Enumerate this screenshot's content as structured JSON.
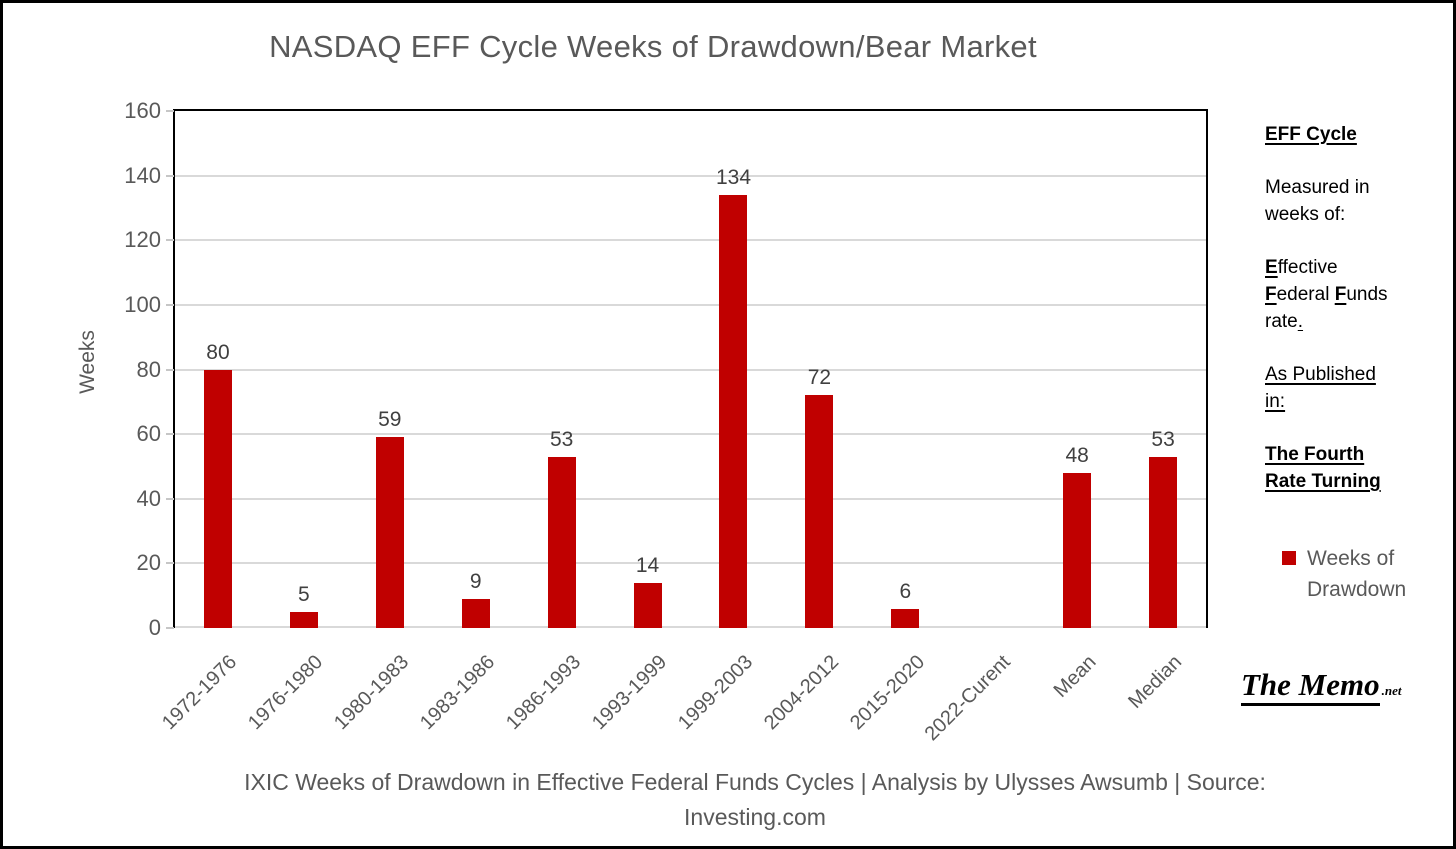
{
  "chart_data": {
    "type": "bar",
    "title": "NASDAQ EFF Cycle Weeks of Drawdown/Bear Market",
    "categories": [
      "1972-1976",
      "1976-1980",
      "1980-1983",
      "1983-1986",
      "1986-1993",
      "1993-1999",
      "1999-2003",
      "2004-2012",
      "2015-2020",
      "2022-Curent",
      "Mean",
      "Median"
    ],
    "values": [
      80,
      5,
      59,
      9,
      53,
      14,
      134,
      72,
      6,
      0,
      48,
      53
    ],
    "xlabel": "",
    "ylabel": "Weeks",
    "ylim": [
      0,
      160
    ],
    "yticks": [
      0,
      20,
      40,
      60,
      80,
      100,
      120,
      140,
      160
    ],
    "grid": true,
    "data_labels": true,
    "bar_color": "#C00000",
    "gridline_color": "#D9D9D9",
    "legend_position": "right"
  },
  "legend": {
    "swatch_color": "#C00000",
    "lines": [
      "Weeks of",
      "Drawdown"
    ]
  },
  "side_panel": {
    "paragraphs": [
      {
        "lines": [
          {
            "text": "EFF Cycle",
            "bold": true,
            "underline": true
          }
        ]
      },
      {
        "lines": [
          {
            "text": "Measured in"
          },
          {
            "text": "weeks of:"
          }
        ]
      },
      {
        "lines": [
          {
            "text": "Effective",
            "lead": true
          },
          {
            "text": "Federal Funds",
            "lead": true
          },
          {
            "text": "rate.",
            "tail_underline": true
          }
        ]
      },
      {
        "lines": [
          {
            "text": "As Published",
            "underline": true
          },
          {
            "text": "in:",
            "underline": true
          }
        ]
      },
      {
        "lines": [
          {
            "text": "The Fourth",
            "bold": true,
            "underline": true
          },
          {
            "text": "Rate Turning",
            "bold": true,
            "underline": true
          }
        ]
      }
    ]
  },
  "caption": {
    "lines": [
      "IXIC Weeks of Drawdown in Effective Federal Funds Cycles | Analysis by Ulysses Awsumb | Source:",
      "Investing.com"
    ]
  },
  "logo": {
    "main": "The Memo",
    "suffix": ".net"
  }
}
